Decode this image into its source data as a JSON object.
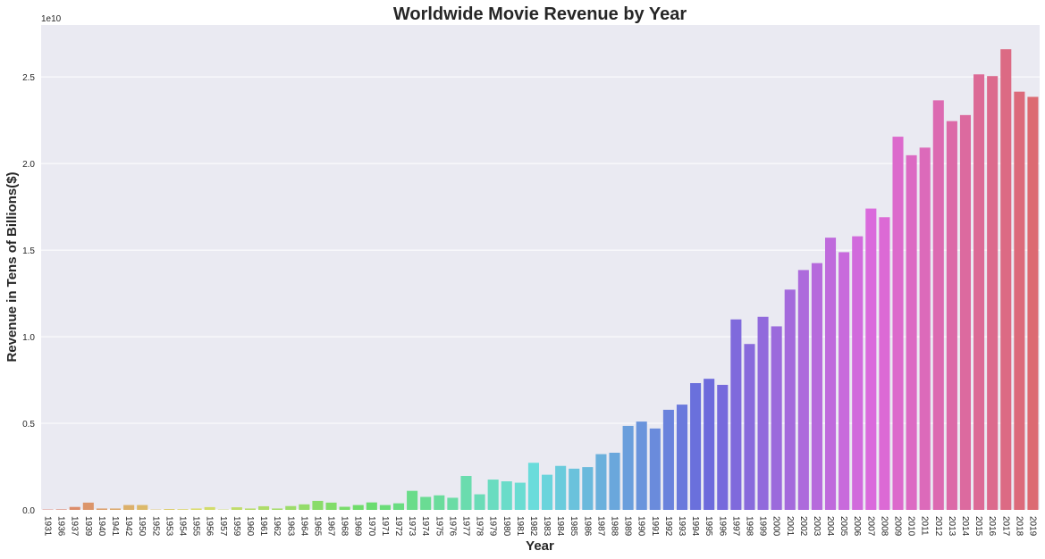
{
  "chart_data": {
    "type": "bar",
    "title": "Worldwide Movie Revenue by Year",
    "xlabel": "Year",
    "ylabel": "Revenue in Tens of Billions($)",
    "offset_text": "1e10",
    "ylim": [
      0,
      2.8
    ],
    "yticks": [
      0.0,
      0.5,
      1.0,
      1.5,
      2.0,
      2.5
    ],
    "ytick_labels": [
      "0.0",
      "0.5",
      "1.0",
      "1.5",
      "2.0",
      "2.5"
    ],
    "grid": true,
    "background": "#eaeaf2",
    "categories": [
      "1931",
      "1936",
      "1937",
      "1939",
      "1940",
      "1941",
      "1942",
      "1950",
      "1952",
      "1953",
      "1954",
      "1955",
      "1956",
      "1957",
      "1959",
      "1960",
      "1961",
      "1962",
      "1963",
      "1964",
      "1965",
      "1967",
      "1968",
      "1969",
      "1970",
      "1971",
      "1972",
      "1973",
      "1974",
      "1975",
      "1976",
      "1977",
      "1978",
      "1979",
      "1980",
      "1981",
      "1982",
      "1983",
      "1984",
      "1985",
      "1986",
      "1987",
      "1988",
      "1989",
      "1990",
      "1991",
      "1992",
      "1993",
      "1994",
      "1995",
      "1996",
      "1997",
      "1998",
      "1999",
      "2000",
      "2001",
      "2002",
      "2003",
      "2004",
      "2005",
      "2006",
      "2007",
      "2008",
      "2009",
      "2010",
      "2011",
      "2012",
      "2013",
      "2014",
      "2015",
      "2016",
      "2017",
      "2018",
      "2019"
    ],
    "values": [
      0.002,
      0.003,
      0.017,
      0.042,
      0.008,
      0.008,
      0.028,
      0.028,
      0.002,
      0.005,
      0.004,
      0.008,
      0.016,
      0.002,
      0.015,
      0.008,
      0.021,
      0.008,
      0.022,
      0.032,
      0.052,
      0.042,
      0.018,
      0.028,
      0.043,
      0.028,
      0.038,
      0.11,
      0.075,
      0.084,
      0.07,
      0.196,
      0.09,
      0.175,
      0.165,
      0.157,
      0.272,
      0.203,
      0.254,
      0.238,
      0.247,
      0.322,
      0.33,
      0.485,
      0.51,
      0.47,
      0.578,
      0.608,
      0.732,
      0.757,
      0.722,
      1.1,
      0.958,
      1.115,
      1.06,
      1.272,
      1.385,
      1.425,
      1.572,
      1.488,
      1.58,
      1.74,
      1.69,
      2.155,
      2.048,
      2.092,
      2.365,
      2.245,
      2.28,
      2.515,
      2.505,
      2.66,
      2.415,
      2.385
    ]
  }
}
